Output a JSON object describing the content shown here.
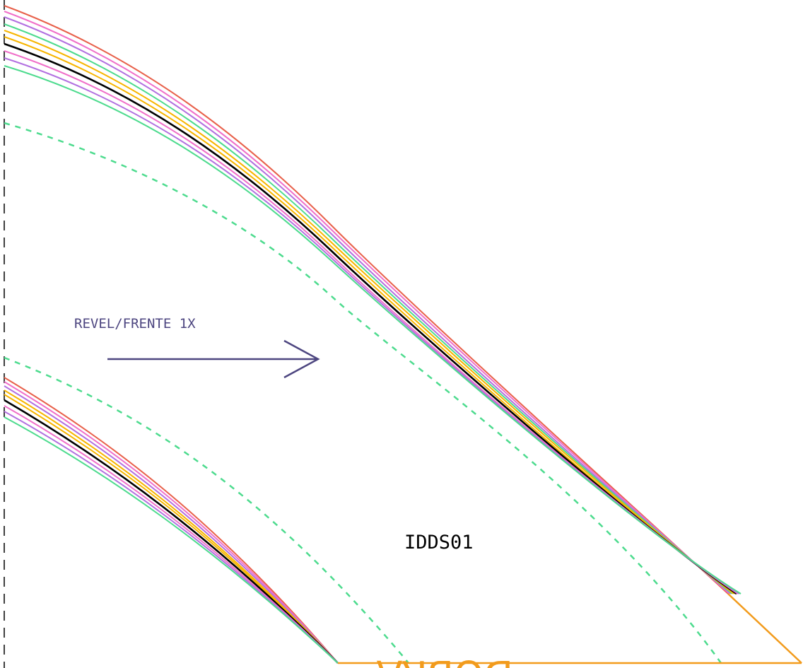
{
  "pattern": {
    "piece_id": "IDDS01",
    "grain_label": "REVEL/FRENTE 1X",
    "fold_label": "DOBRA"
  },
  "colors": {
    "background": "#ffffff",
    "center_dash_line": "#000000",
    "grain_arrow": "#4d4680",
    "fold_line": "#f29b1c",
    "seam_allowance_dash": "#4ddb8e",
    "size_lines": [
      "#e8604a",
      "#f06fc9",
      "#b270e0",
      "#4ddb8e",
      "#f7b500",
      "#000000"
    ]
  }
}
